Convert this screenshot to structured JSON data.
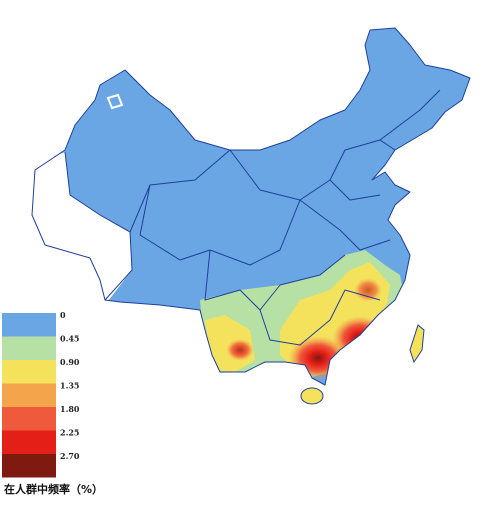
{
  "legend": {
    "title": "在人群中频率（%）",
    "items": [
      {
        "label": "0",
        "color": "#6aa6e3"
      },
      {
        "label": "0.45",
        "color": "#b6e0a4"
      },
      {
        "label": "0.90",
        "color": "#f4e25c"
      },
      {
        "label": "1.35",
        "color": "#f4a54c"
      },
      {
        "label": "1.80",
        "color": "#ef5a3c"
      },
      {
        "label": "2.25",
        "color": "#e41f18"
      },
      {
        "label": "2.70",
        "color": "#7e1a10"
      }
    ]
  }
}
